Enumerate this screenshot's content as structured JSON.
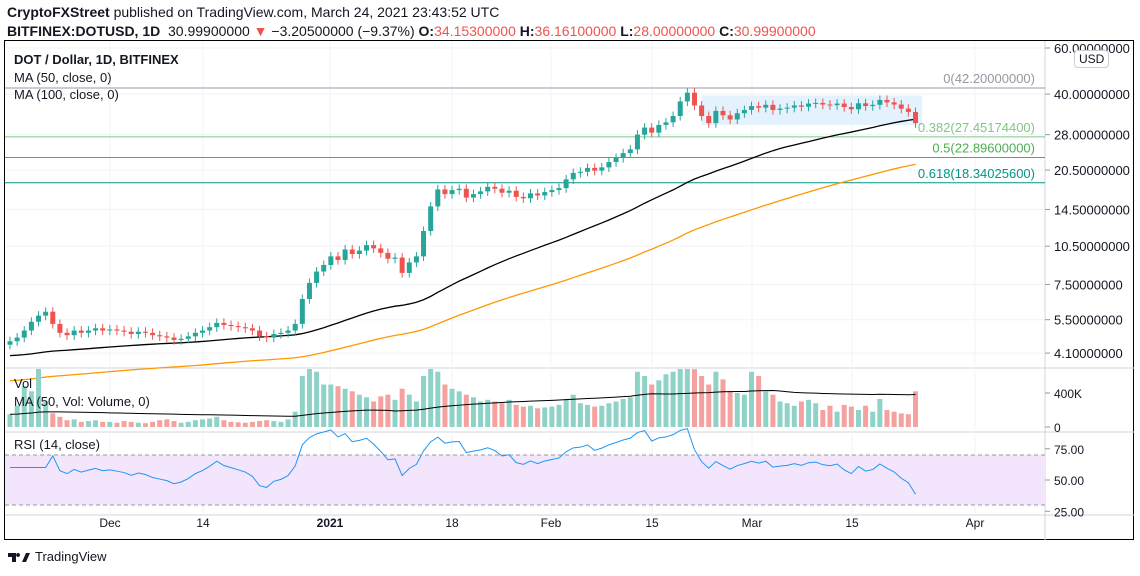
{
  "header": {
    "publisher": "CryptoFXStreet",
    "published_text": " published on TradingView.com, March 24, 2021 23:43:52 UTC",
    "symbol": "BITFINEX:DOTUSD, 1D",
    "last": "30.99900000",
    "change": "−3.20500000 (−9.37%)",
    "o_label": "O:",
    "o": "34.15300000",
    "h_label": "H:",
    "h": "36.16100000",
    "l_label": "L:",
    "l": "28.00000000",
    "c_label": "C:",
    "c": "30.99900000"
  },
  "legend": {
    "title": "DOT / Dollar, 1D, BITFINEX",
    "ma50": "MA (50, close, 0)",
    "ma100": "MA (100, close, 0)",
    "vol": "Vol",
    "vol_ma": "MA (50, Vol: Volume, 0)",
    "rsi": "RSI (14, close)"
  },
  "currency": "USD",
  "price_axis": [
    "60.00000000",
    "40.00000000",
    "28.00000000",
    "20.50000000",
    "14.50000000",
    "10.50000000",
    "7.50000000",
    "5.50000000",
    "4.10000000"
  ],
  "volume_axis": [
    "400K",
    "0"
  ],
  "rsi_axis": [
    "75.00",
    "50.00",
    "25.00"
  ],
  "time_axis": [
    "Dec",
    "14",
    "2021",
    "18",
    "Feb",
    "15",
    "Mar",
    "15",
    "Apr"
  ],
  "fib": [
    {
      "label": "0(42.20000000)",
      "price": 42.2,
      "color": "#9598a1"
    },
    {
      "label": "0.382(27.45174400)",
      "price": 27.451744,
      "color": "#81c784"
    },
    {
      "label": "0.5(22.89600000)",
      "price": 22.896,
      "color": "#4caf50"
    },
    {
      "label": "0.618(18.34025600)",
      "price": 18.340256,
      "color": "#009688"
    }
  ],
  "colors": {
    "up": "#26a69a",
    "down": "#ef5350",
    "ma50": "#000000",
    "ma100": "#ff9800",
    "rsi": "#2196f3",
    "range_box": "#e3f2fd"
  },
  "chart_data": {
    "type": "candlestick",
    "scale": "log",
    "start_date": "2020-11-17",
    "end_date": "2021-03-24",
    "closes": [
      4.55,
      4.7,
      5.0,
      5.4,
      5.7,
      5.9,
      5.3,
      4.9,
      4.8,
      5.0,
      4.9,
      5.0,
      5.1,
      5.0,
      5.05,
      5.0,
      4.95,
      4.85,
      4.95,
      4.9,
      4.8,
      4.75,
      4.7,
      4.6,
      4.65,
      4.75,
      4.9,
      5.0,
      5.15,
      5.35,
      5.25,
      5.2,
      5.15,
      5.1,
      5.0,
      4.75,
      4.7,
      4.85,
      4.9,
      5.0,
      5.3,
      6.6,
      7.6,
      8.4,
      8.9,
      9.6,
      9.3,
      10.2,
      9.8,
      10.1,
      10.6,
      10.3,
      9.9,
      9.4,
      9.5,
      8.3,
      9.1,
      9.6,
      12.0,
      14.9,
      17.3,
      16.6,
      17.2,
      17.4,
      16.1,
      16.6,
      17.0,
      17.7,
      17.4,
      16.8,
      17.1,
      16.2,
      16.0,
      16.7,
      16.4,
      16.9,
      17.2,
      17.5,
      18.9,
      20.0,
      20.2,
      20.9,
      20.4,
      21.0,
      22.0,
      22.8,
      23.8,
      24.6,
      28.0,
      29.8,
      28.5,
      30.5,
      31.2,
      33.0,
      37.5,
      40.5,
      36.2,
      33.0,
      31.0,
      34.5,
      33.2,
      32.0,
      33.8,
      34.8,
      36.0,
      35.5,
      36.4,
      34.8,
      35.2,
      35.5,
      36.2,
      35.8,
      36.8,
      37.0,
      36.5,
      36.3,
      36.8,
      35.7,
      35.0,
      36.9,
      36.0,
      36.4,
      38.0,
      37.2,
      36.5,
      35.2,
      34.2,
      31.0
    ],
    "volumes_k": [
      150,
      250,
      480,
      420,
      700,
      300,
      160,
      120,
      80,
      90,
      60,
      70,
      80,
      60,
      60,
      50,
      70,
      60,
      50,
      45,
      60,
      80,
      90,
      70,
      50,
      60,
      80,
      90,
      100,
      120,
      80,
      60,
      55,
      50,
      60,
      70,
      80,
      70,
      60,
      90,
      180,
      600,
      700,
      650,
      500,
      500,
      480,
      450,
      420,
      380,
      350,
      300,
      360,
      380,
      320,
      450,
      380,
      300,
      600,
      700,
      650,
      500,
      450,
      420,
      380,
      350,
      300,
      320,
      300,
      280,
      320,
      260,
      240,
      250,
      220,
      230,
      240,
      260,
      330,
      380,
      280,
      260,
      240,
      250,
      280,
      300,
      330,
      350,
      650,
      600,
      500,
      550,
      620,
      650,
      700,
      700,
      680,
      600,
      500,
      650,
      560,
      420,
      400,
      380,
      650,
      600,
      420,
      380,
      300,
      280,
      250,
      300,
      320,
      280,
      200,
      250,
      180,
      260,
      240,
      200,
      250,
      180,
      330,
      200,
      180,
      160,
      150,
      420
    ],
    "range_box": {
      "from_index": 97,
      "to_index": 130,
      "top": 39.5,
      "bottom": 30.5
    }
  },
  "footer": {
    "brand": "TradingView"
  }
}
